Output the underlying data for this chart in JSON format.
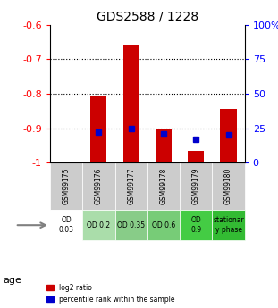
{
  "title": "GDS2588 / 1228",
  "samples": [
    "GSM99175",
    "GSM99176",
    "GSM99177",
    "GSM99178",
    "GSM99179",
    "GSM99180"
  ],
  "log2_ratio": [
    null,
    -0.805,
    -0.658,
    -0.902,
    -0.965,
    -0.845
  ],
  "percentile_rank": [
    null,
    22,
    25,
    21,
    17,
    20
  ],
  "ylim_left": [
    -1.0,
    -0.6
  ],
  "ylim_right": [
    0,
    100
  ],
  "yticks_left": [
    -1.0,
    -0.9,
    -0.8,
    -0.7,
    -0.6
  ],
  "yticks_right": [
    0,
    25,
    50,
    75,
    100
  ],
  "ytick_labels_left": [
    "-1",
    "-0.9",
    "-0.8",
    "-0.7",
    "-0.6"
  ],
  "ytick_labels_right": [
    "0",
    "25",
    "50",
    "75",
    "100%"
  ],
  "bar_color": "#cc0000",
  "dot_color": "#0000cc",
  "grid_color": "#000000",
  "sample_bg_color": "#cccccc",
  "age_labels": [
    "OD\n0.03",
    "OD 0.2",
    "OD 0.35",
    "OD 0.6",
    "OD\n0.9",
    "stationar\ny phase"
  ],
  "age_bg_colors": [
    "#ffffff",
    "#aaddaa",
    "#88cc88",
    "#77cc77",
    "#44cc44",
    "#33bb33"
  ],
  "legend_red": "log2 ratio",
  "legend_blue": "percentile rank within the sample",
  "age_label": "age"
}
